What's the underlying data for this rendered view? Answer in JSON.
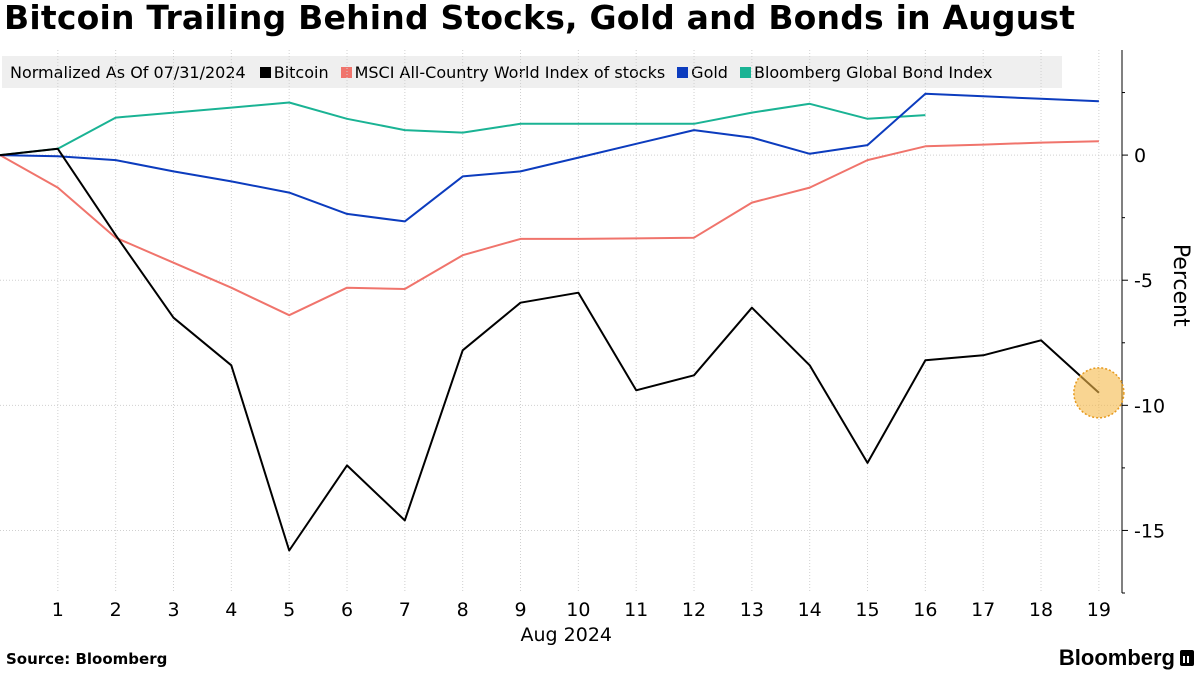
{
  "chart_data": {
    "type": "line",
    "title": "Bitcoin Trailing Behind Stocks, Gold and Bonds in August",
    "legend_note": "Normalized As Of 07/31/2024",
    "xlabel": "Aug 2024",
    "ylabel": "Percent",
    "x": [
      0,
      1,
      2,
      3,
      4,
      5,
      6,
      7,
      8,
      9,
      10,
      11,
      12,
      13,
      14,
      15,
      16,
      17,
      18,
      19
    ],
    "xticks": [
      1,
      2,
      3,
      4,
      5,
      6,
      7,
      8,
      9,
      10,
      11,
      12,
      13,
      14,
      15,
      16,
      17,
      18,
      19
    ],
    "yticks": [
      0,
      -5,
      -10,
      -15
    ],
    "ylim": [
      -17.5,
      4.2
    ],
    "xlim": [
      0,
      19.4
    ],
    "series": [
      {
        "name": "Bitcoin",
        "color": "#000000",
        "values": [
          0,
          0.25,
          -3.2,
          -6.5,
          -8.4,
          -15.8,
          -12.4,
          -14.6,
          -7.8,
          -5.9,
          -5.5,
          -9.4,
          -8.8,
          -6.1,
          -8.4,
          -12.3,
          -8.2,
          -8.0,
          -7.4,
          -9.5
        ]
      },
      {
        "name": "MSCI All-Country World Index of stocks",
        "color": "#f0746c",
        "values": [
          0,
          -1.3,
          -3.3,
          -4.3,
          -5.3,
          -6.4,
          -5.3,
          -5.35,
          -4.0,
          -3.35,
          -3.35,
          -3.33,
          -3.3,
          -1.9,
          -1.3,
          -0.2,
          0.35,
          0.42,
          0.5,
          0.55
        ]
      },
      {
        "name": "Gold",
        "color": "#0c3cbe",
        "values": [
          0,
          -0.05,
          -0.2,
          -0.65,
          -1.05,
          -1.5,
          -2.35,
          -2.65,
          -0.85,
          -0.65,
          -0.1,
          0.45,
          1.0,
          0.7,
          0.05,
          0.4,
          2.45,
          2.35,
          2.25,
          2.15
        ]
      },
      {
        "name": "Bloomberg Global Bond Index",
        "color": "#1ab394",
        "values": [
          0,
          0.25,
          1.5,
          1.7,
          1.9,
          2.1,
          1.45,
          1.0,
          0.9,
          1.25,
          1.25,
          1.25,
          1.25,
          1.7,
          2.05,
          1.45,
          1.6,
          null,
          null,
          null
        ]
      }
    ],
    "highlight": {
      "series": "Bitcoin",
      "x": 19,
      "value": -9.5,
      "color": "#f5b94a"
    }
  },
  "footer": {
    "source": "Source: Bloomberg",
    "brand": "Bloomberg"
  }
}
